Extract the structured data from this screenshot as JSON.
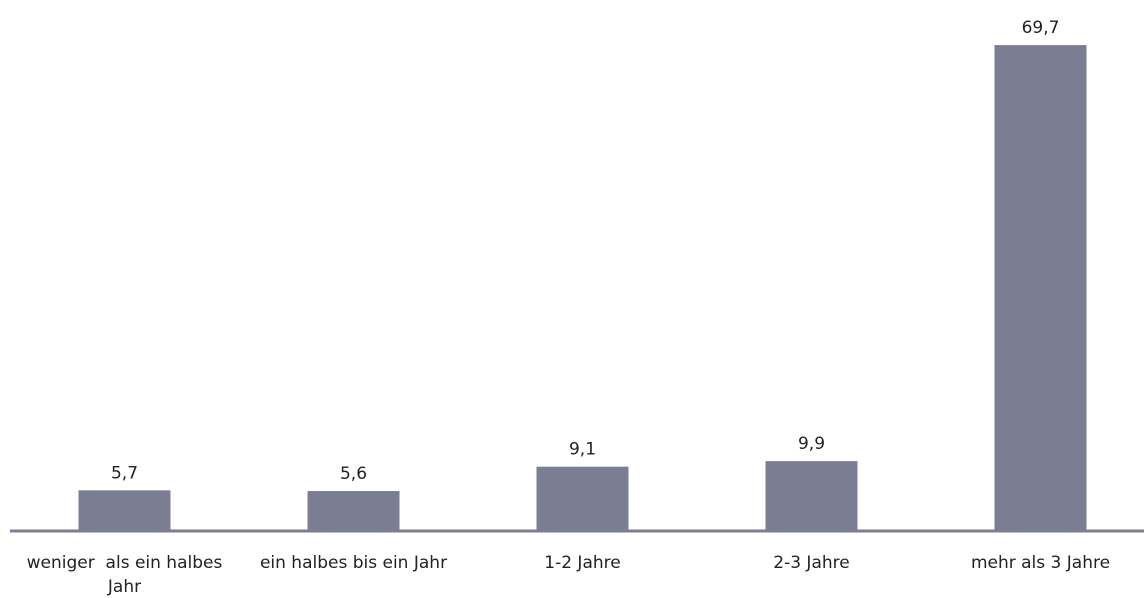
{
  "chart_data": {
    "type": "bar",
    "categories": [
      "weniger  als ein halbes Jahr",
      "ein halbes bis ein Jahr",
      "1-2 Jahre",
      "2-3 Jahre",
      "mehr als 3 Jahre"
    ],
    "values": [
      5.7,
      5.6,
      9.1,
      9.9,
      69.7
    ],
    "value_labels": [
      "5,7",
      "5,6",
      "9,1",
      "9,9",
      "69,7"
    ],
    "color": "#7b7d93",
    "ylim": [
      0,
      70
    ]
  }
}
